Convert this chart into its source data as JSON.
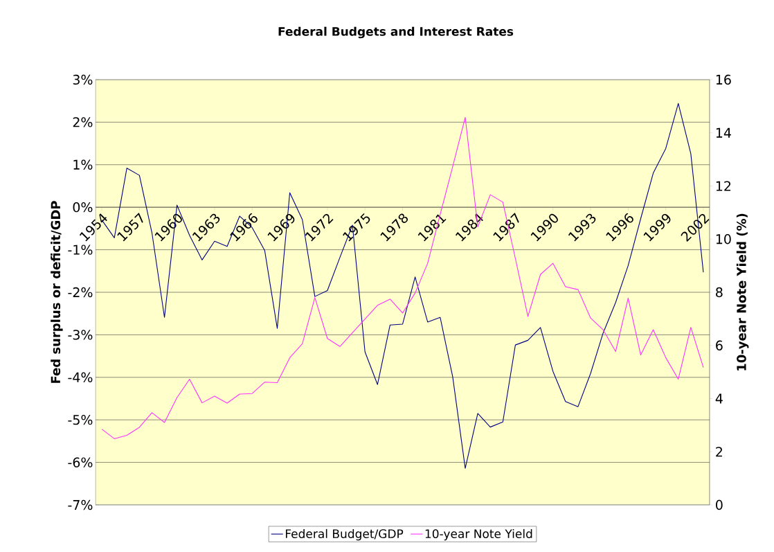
{
  "chart_data": {
    "type": "line",
    "title": "Federal Budgets and Interest Rates",
    "ylabel": "Fed surplus or deficit/GDP",
    "y2label": "10-year Note Yield (%)",
    "categories": [
      "1954",
      null,
      null,
      "1957",
      null,
      null,
      "1960",
      null,
      null,
      "1963",
      null,
      null,
      "1966",
      null,
      null,
      "1969",
      null,
      null,
      "1972",
      null,
      null,
      "1975",
      null,
      null,
      "1978",
      null,
      null,
      "1981",
      null,
      null,
      "1984",
      null,
      null,
      "1987",
      null,
      null,
      "1990",
      null,
      null,
      "1993",
      null,
      null,
      "1996",
      null,
      null,
      "1999",
      null,
      null,
      "2002"
    ],
    "series": [
      {
        "name": "Federal Budget/GDP",
        "color": "#000080",
        "values": [
          -0.3,
          -0.72,
          0.92,
          0.75,
          -0.6,
          -2.59,
          0.05,
          -0.66,
          -1.24,
          -0.8,
          -0.92,
          -0.21,
          -0.48,
          -1.02,
          -2.85,
          0.34,
          -0.29,
          -2.1,
          -1.96,
          -1.18,
          -0.42,
          -3.4,
          -4.17,
          -2.77,
          -2.75,
          -1.64,
          -2.7,
          -2.59,
          -3.99,
          -6.14,
          -4.85,
          -5.17,
          -5.05,
          -3.24,
          -3.13,
          -2.83,
          -3.86,
          -4.57,
          -4.69,
          -3.91,
          -2.96,
          -2.24,
          -1.37,
          -0.27,
          0.8,
          1.38,
          2.44,
          1.26,
          -1.53
        ]
      },
      {
        "name": "10-year Note Yield",
        "color": "#FF33FF",
        "axis": "y2",
        "values": [
          2.85,
          2.49,
          2.62,
          2.92,
          3.47,
          3.1,
          4.04,
          4.73,
          3.84,
          4.09,
          3.83,
          4.17,
          4.19,
          4.62,
          4.6,
          5.54,
          6.06,
          7.8,
          6.26,
          5.96,
          6.48,
          6.99,
          7.51,
          7.74,
          7.22,
          7.97,
          9.09,
          10.93,
          12.73,
          14.58,
          10.46,
          11.67,
          11.39,
          9.27,
          7.09,
          8.67,
          9.09,
          8.21,
          8.1,
          7.03,
          6.59,
          5.77,
          7.78,
          5.64,
          6.59,
          5.54,
          4.73,
          6.68,
          5.17
        ]
      }
    ],
    "ylim": [
      -7,
      3
    ],
    "yticks": [
      {
        "value": -7,
        "label": "-7%"
      },
      {
        "value": -6,
        "label": "-6%"
      },
      {
        "value": -5,
        "label": "-5%"
      },
      {
        "value": -4,
        "label": "-4%"
      },
      {
        "value": -3,
        "label": "-3%"
      },
      {
        "value": -2,
        "label": "-2%"
      },
      {
        "value": -1,
        "label": "-1%"
      },
      {
        "value": 0,
        "label": "0%"
      },
      {
        "value": 1,
        "label": "1%"
      },
      {
        "value": 2,
        "label": "2%"
      },
      {
        "value": 3,
        "label": "3%"
      }
    ],
    "y2lim": [
      0,
      16
    ],
    "y2ticks": [
      0,
      2,
      4,
      6,
      8,
      10,
      12,
      14,
      16
    ],
    "grid": "y",
    "legend": "bottom"
  }
}
